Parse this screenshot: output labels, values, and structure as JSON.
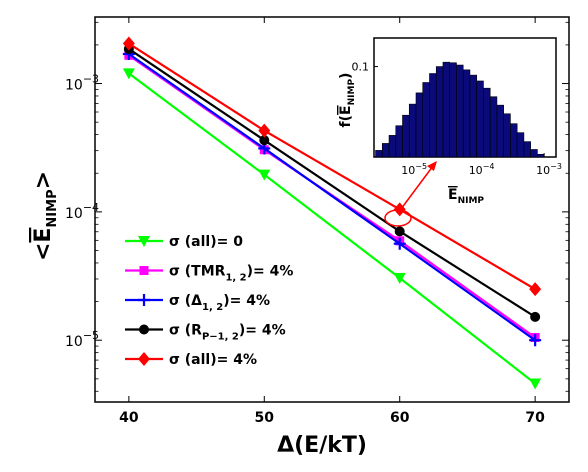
{
  "chart_data": [
    {
      "type": "line",
      "title": "",
      "xlabel": "Δ(E/kT)",
      "ylabel": "<E_NIMP>",
      "yscale": "log",
      "xlim": [
        37.5,
        72.5
      ],
      "ylim": [
        3.3e-06,
        0.0033
      ],
      "x": [
        40,
        50,
        60,
        70
      ],
      "x_ticks": [
        40,
        50,
        60,
        70
      ],
      "y_ticks": [
        {
          "value": 1e-05,
          "label": "10",
          "exp": "−5"
        },
        {
          "value": 0.0001,
          "label": "10",
          "exp": "−4"
        },
        {
          "value": 0.001,
          "label": "10",
          "exp": "−3"
        }
      ],
      "legend_position": "lower-left",
      "series": [
        {
          "name": "σ (all)= 0",
          "color": "#00ff00",
          "marker": "triangle-down",
          "values": [
            0.0012,
            0.000195,
            3.05e-05,
            4.6e-06
          ]
        },
        {
          "name_parts": [
            "σ (TMR",
            "1, 2",
            ")= 4%"
          ],
          "color": "#ff00ff",
          "marker": "square",
          "values": [
            0.00166,
            0.000305,
            5.95e-05,
            1.05e-05
          ]
        },
        {
          "name_parts": [
            "σ (Δ",
            "1, 2",
            ")= 4%"
          ],
          "color": "#0000ff",
          "marker": "plus",
          "values": [
            0.0017,
            0.000312,
            5.65e-05,
            1e-05
          ]
        },
        {
          "name_parts": [
            "σ (R",
            "P−1, 2",
            ")= 4%"
          ],
          "color": "#000000",
          "marker": "circle",
          "values": [
            0.00186,
            0.000362,
            7.05e-05,
            1.52e-05
          ]
        },
        {
          "name": "σ (all)= 4%",
          "color": "#ff0000",
          "marker": "diamond",
          "values": [
            0.00205,
            0.00043,
            0.0001045,
            2.5e-05
          ]
        }
      ],
      "grid": false
    },
    {
      "type": "bar",
      "title": "",
      "xlabel": "E_NIMP",
      "ylabel": "f(E_NIMP)",
      "xscale": "log",
      "yscale": "log",
      "xlim": [
        3e-06,
        0.0015
      ],
      "ylim": [
        0.0055,
        0.25
      ],
      "x_ticks": [
        {
          "value": 1e-05,
          "label": "10",
          "exp": "−5"
        },
        {
          "value": 0.0001,
          "label": "10",
          "exp": "−4"
        },
        {
          "value": 0.001,
          "label": "10",
          "exp": "−3"
        }
      ],
      "y_ticks": [
        {
          "value": 0.1,
          "label": "0.1"
        }
      ],
      "bar_color": "#0a0a7a",
      "bin_edges_log10": [
        -5.5,
        -5.4,
        -5.3,
        -5.2,
        -5.1,
        -5.0,
        -4.9,
        -4.8,
        -4.7,
        -4.6,
        -4.5,
        -4.4,
        -4.3,
        -4.2,
        -4.1,
        -4.0,
        -3.9,
        -3.8,
        -3.7,
        -3.6,
        -3.5,
        -3.4,
        -3.3,
        -3.2,
        -3.1,
        -3.0
      ],
      "values": [
        0.0068,
        0.0085,
        0.011,
        0.015,
        0.021,
        0.03,
        0.043,
        0.06,
        0.08,
        0.1,
        0.115,
        0.113,
        0.105,
        0.09,
        0.076,
        0.063,
        0.05,
        0.038,
        0.029,
        0.022,
        0.016,
        0.012,
        0.009,
        0.007,
        0.006
      ]
    }
  ]
}
